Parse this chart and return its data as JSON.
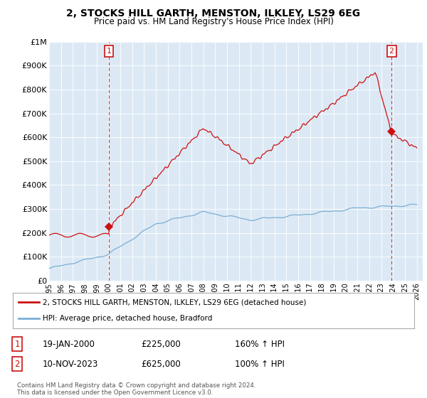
{
  "title": "2, STOCKS HILL GARTH, MENSTON, ILKLEY, LS29 6EG",
  "subtitle": "Price paid vs. HM Land Registry's House Price Index (HPI)",
  "ylim": [
    0,
    1000000
  ],
  "yticks": [
    0,
    100000,
    200000,
    300000,
    400000,
    500000,
    600000,
    700000,
    800000,
    900000,
    1000000
  ],
  "ytick_labels": [
    "£0",
    "£100K",
    "£200K",
    "£300K",
    "£400K",
    "£500K",
    "£600K",
    "£700K",
    "£800K",
    "£900K",
    "£1M"
  ],
  "hpi_color": "#7bafd4",
  "price_color": "#cc1111",
  "bg_color": "#dce9f5",
  "fig_color": "#ffffff",
  "sale1_year": 2000.05,
  "sale1_price": 225000,
  "sale2_year": 2023.87,
  "sale2_price": 625000,
  "legend1": "2, STOCKS HILL GARTH, MENSTON, ILKLEY, LS29 6EG (detached house)",
  "legend2": "HPI: Average price, detached house, Bradford",
  "table_row1": [
    "1",
    "19-JAN-2000",
    "£225,000",
    "160% ↑ HPI"
  ],
  "table_row2": [
    "2",
    "10-NOV-2023",
    "£625,000",
    "100% ↑ HPI"
  ],
  "footnote": "Contains HM Land Registry data © Crown copyright and database right 2024.\nThis data is licensed under the Open Government Licence v3.0.",
  "grid_color": "#ffffff",
  "xlim_left": 1995.0,
  "xlim_right": 2026.5
}
